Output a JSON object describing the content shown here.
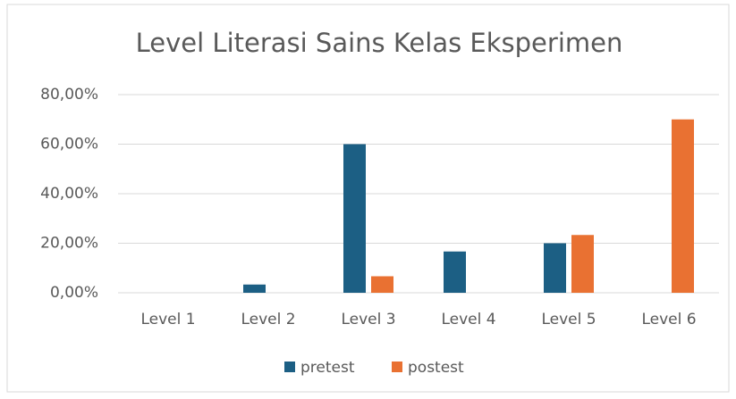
{
  "chart_data": {
    "type": "bar",
    "title": "Level Literasi Sains Kelas Eksperimen",
    "categories": [
      "Level 1",
      "Level 2",
      "Level 3",
      "Level 4",
      "Level 5",
      "Level 6"
    ],
    "series": [
      {
        "name": "pretest",
        "color": "#1c5f84",
        "values": [
          0,
          3.33,
          60,
          16.67,
          20,
          0
        ]
      },
      {
        "name": "postest",
        "color": "#e97132",
        "values": [
          0,
          0,
          6.67,
          0,
          23.33,
          70
        ]
      }
    ],
    "ylim": [
      0,
      80
    ],
    "yticks": [
      {
        "value": 0,
        "label": "0,00%"
      },
      {
        "value": 20,
        "label": "20,00%"
      },
      {
        "value": 40,
        "label": "40,00%"
      },
      {
        "value": 60,
        "label": "60,00%"
      },
      {
        "value": 80,
        "label": "80,00%"
      }
    ],
    "grid": true,
    "legend": "bottom"
  }
}
